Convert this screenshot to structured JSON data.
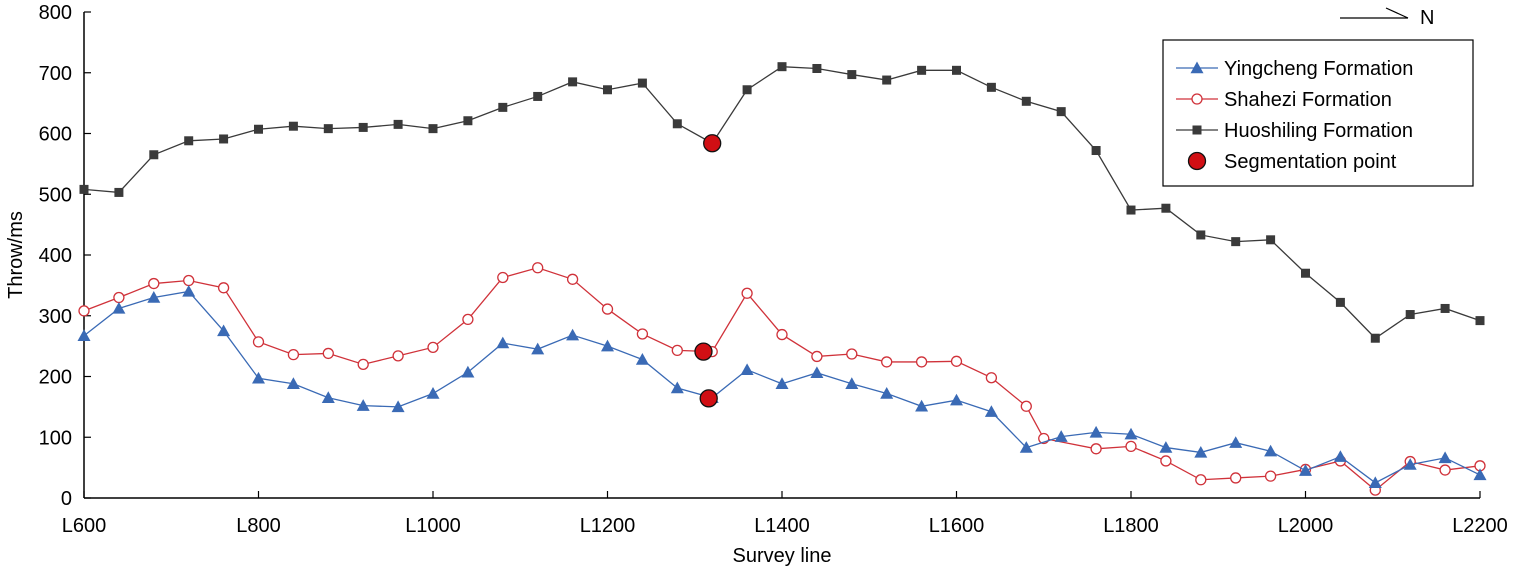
{
  "chart_data": {
    "type": "line",
    "xlabel": "Survey line",
    "ylabel": "Throw/ms",
    "x_range": [
      600,
      2200
    ],
    "ylim": [
      0,
      800
    ],
    "x_ticks": [
      600,
      800,
      1000,
      1200,
      1400,
      1600,
      1800,
      2000,
      2200
    ],
    "x_tick_labels": [
      "L600",
      "L800",
      "L1000",
      "L1200",
      "L1400",
      "L1600",
      "L1800",
      "L2000",
      "L2200"
    ],
    "y_ticks": [
      0,
      100,
      200,
      300,
      400,
      500,
      600,
      700,
      800
    ],
    "y_tick_labels": [
      "0",
      "100",
      "200",
      "300",
      "400",
      "500",
      "600",
      "700",
      "800"
    ],
    "grid": false,
    "legend_position": "top-right",
    "north_arrow_label": "N",
    "series": [
      {
        "name": "Yingcheng Formation",
        "color": "#3a6ab5",
        "marker": "filled-triangle",
        "x": [
          600,
          640,
          680,
          720,
          760,
          800,
          840,
          880,
          920,
          960,
          1000,
          1040,
          1080,
          1120,
          1160,
          1200,
          1240,
          1280,
          1320,
          1360,
          1400,
          1440,
          1480,
          1520,
          1560,
          1600,
          1640,
          1680,
          1720,
          1760,
          1800,
          1840,
          1880,
          1920,
          1960,
          2000,
          2040,
          2080,
          2120,
          2160,
          2200
        ],
        "y": [
          267,
          312,
          330,
          340,
          275,
          197,
          188,
          165,
          152,
          150,
          172,
          207,
          255,
          245,
          268,
          250,
          228,
          181,
          165,
          211,
          188,
          206,
          188,
          172,
          151,
          161,
          142,
          83,
          101,
          108,
          105,
          83,
          75,
          91,
          77,
          45,
          68,
          25,
          55,
          66,
          38
        ]
      },
      {
        "name": "Shahezi Formation",
        "color": "#d0323a",
        "marker": "hollow-circle",
        "x": [
          600,
          640,
          680,
          720,
          760,
          800,
          840,
          880,
          920,
          960,
          1000,
          1040,
          1080,
          1120,
          1160,
          1200,
          1240,
          1280,
          1320,
          1360,
          1400,
          1440,
          1480,
          1520,
          1560,
          1600,
          1640,
          1680,
          1700,
          1760,
          1800,
          1840,
          1880,
          1920,
          1960,
          2000,
          2040,
          2080,
          2120,
          2160,
          2200
        ],
        "y": [
          308,
          330,
          353,
          358,
          346,
          257,
          236,
          238,
          220,
          234,
          248,
          294,
          363,
          379,
          360,
          311,
          270,
          243,
          241,
          337,
          269,
          233,
          237,
          224,
          224,
          225,
          198,
          151,
          98,
          81,
          85,
          61,
          30,
          33,
          36,
          47,
          61,
          13,
          60,
          46,
          53
        ]
      },
      {
        "name": "Huoshiling Formation",
        "color": "#3a3a3a",
        "marker": "filled-square",
        "x": [
          600,
          640,
          680,
          720,
          760,
          800,
          840,
          880,
          920,
          960,
          1000,
          1040,
          1080,
          1120,
          1160,
          1200,
          1240,
          1280,
          1320,
          1360,
          1400,
          1440,
          1480,
          1520,
          1560,
          1600,
          1640,
          1680,
          1720,
          1760,
          1800,
          1840,
          1880,
          1920,
          1960,
          2000,
          2040,
          2080,
          2120,
          2160,
          2200
        ],
        "y": [
          508,
          503,
          565,
          588,
          591,
          607,
          612,
          608,
          610,
          615,
          608,
          621,
          643,
          661,
          685,
          672,
          683,
          616,
          584,
          672,
          710,
          707,
          697,
          688,
          704,
          704,
          676,
          653,
          636,
          572,
          474,
          477,
          433,
          422,
          425,
          370,
          322,
          263,
          302,
          312,
          292
        ]
      },
      {
        "name": "Segmentation point",
        "color": "#d10f14",
        "marker": "large-circle",
        "x": [
          1320,
          1310,
          1316
        ],
        "y": [
          584,
          241,
          164
        ]
      }
    ]
  }
}
